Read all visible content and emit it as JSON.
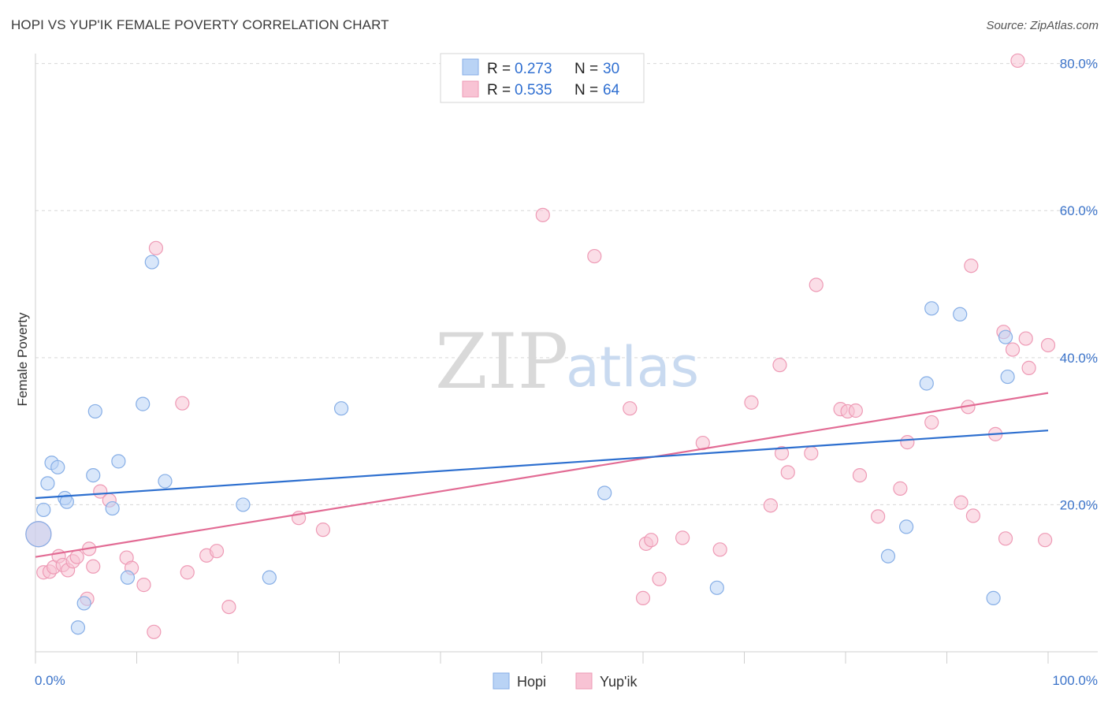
{
  "header": {
    "title": "HOPI VS YUP'IK FEMALE POVERTY CORRELATION CHART",
    "source": "Source: ZipAtlas.com"
  },
  "watermark": {
    "zip": "ZIP",
    "atlas": "atlas"
  },
  "colors": {
    "hopi_fill": "#b9d3f5",
    "hopi_stroke": "#86aee6",
    "hopi_line": "#2d6fcf",
    "yupik_fill": "#f8c3d4",
    "yupik_stroke": "#ee9ab5",
    "yupik_line": "#e26b94",
    "tick_text": "#3b73c9",
    "grid": "#d8d8d8"
  },
  "legend": {
    "rows": [
      {
        "r_label": "R = ",
        "r_value": "0.273",
        "n_label": "N = ",
        "n_value": "30"
      },
      {
        "r_label": "R = ",
        "r_value": "0.535",
        "n_label": "N = ",
        "n_value": "64"
      }
    ]
  },
  "chart_data": {
    "type": "scatter",
    "title": "HOPI VS YUP'IK FEMALE POVERTY CORRELATION CHART",
    "xlabel": "",
    "ylabel": "Female Poverty",
    "xlim": [
      0,
      100
    ],
    "ylim": [
      0,
      82
    ],
    "x_tick_labels": [
      "0.0%",
      "100.0%"
    ],
    "y_ticks": [
      20,
      40,
      60,
      80
    ],
    "y_tick_labels": [
      "20.0%",
      "40.0%",
      "60.0%",
      "80.0%"
    ],
    "grid": true,
    "series": [
      {
        "name": "Hopi",
        "R": 0.273,
        "N": 30,
        "trend": {
          "x": [
            0,
            100
          ],
          "y": [
            20.9,
            30.1
          ]
        },
        "points": [
          {
            "x": 0.3,
            "y": 16.0,
            "big": true
          },
          {
            "x": 0.8,
            "y": 19.3
          },
          {
            "x": 1.2,
            "y": 22.9
          },
          {
            "x": 1.6,
            "y": 25.7
          },
          {
            "x": 2.2,
            "y": 25.1
          },
          {
            "x": 2.9,
            "y": 20.9
          },
          {
            "x": 3.1,
            "y": 20.4
          },
          {
            "x": 4.2,
            "y": 3.3
          },
          {
            "x": 4.8,
            "y": 6.6
          },
          {
            "x": 5.7,
            "y": 24.0
          },
          {
            "x": 5.9,
            "y": 32.7
          },
          {
            "x": 7.6,
            "y": 19.5
          },
          {
            "x": 8.2,
            "y": 25.9
          },
          {
            "x": 9.1,
            "y": 10.1
          },
          {
            "x": 10.6,
            "y": 33.7
          },
          {
            "x": 11.5,
            "y": 53.0
          },
          {
            "x": 12.8,
            "y": 23.2
          },
          {
            "x": 20.5,
            "y": 20.0
          },
          {
            "x": 23.1,
            "y": 10.1
          },
          {
            "x": 30.2,
            "y": 33.1
          },
          {
            "x": 56.2,
            "y": 21.6
          },
          {
            "x": 67.3,
            "y": 8.7
          },
          {
            "x": 84.2,
            "y": 13.0
          },
          {
            "x": 86.0,
            "y": 17.0
          },
          {
            "x": 88.0,
            "y": 36.5
          },
          {
            "x": 88.5,
            "y": 46.7
          },
          {
            "x": 91.3,
            "y": 45.9
          },
          {
            "x": 94.6,
            "y": 7.3
          },
          {
            "x": 95.8,
            "y": 42.8
          },
          {
            "x": 96.0,
            "y": 37.4
          }
        ]
      },
      {
        "name": "Yup'ik",
        "R": 0.535,
        "N": 64,
        "trend": {
          "x": [
            0,
            100
          ],
          "y": [
            12.9,
            35.2
          ]
        },
        "points": [
          {
            "x": 0.3,
            "y": 16.0,
            "big": true
          },
          {
            "x": 0.8,
            "y": 10.8
          },
          {
            "x": 1.4,
            "y": 10.9
          },
          {
            "x": 1.8,
            "y": 11.5
          },
          {
            "x": 2.3,
            "y": 13.0
          },
          {
            "x": 2.7,
            "y": 11.8
          },
          {
            "x": 3.2,
            "y": 11.1
          },
          {
            "x": 3.7,
            "y": 12.3
          },
          {
            "x": 4.1,
            "y": 12.9
          },
          {
            "x": 5.1,
            "y": 7.2
          },
          {
            "x": 5.3,
            "y": 14.0
          },
          {
            "x": 5.7,
            "y": 11.6
          },
          {
            "x": 6.4,
            "y": 21.8
          },
          {
            "x": 7.3,
            "y": 20.6
          },
          {
            "x": 9.0,
            "y": 12.8
          },
          {
            "x": 9.5,
            "y": 11.4
          },
          {
            "x": 10.7,
            "y": 9.1
          },
          {
            "x": 11.7,
            "y": 2.7
          },
          {
            "x": 11.9,
            "y": 54.9
          },
          {
            "x": 14.5,
            "y": 33.8
          },
          {
            "x": 15.0,
            "y": 10.8
          },
          {
            "x": 16.9,
            "y": 13.1
          },
          {
            "x": 17.9,
            "y": 13.7
          },
          {
            "x": 19.1,
            "y": 6.1
          },
          {
            "x": 26.0,
            "y": 18.2
          },
          {
            "x": 28.4,
            "y": 16.6
          },
          {
            "x": 50.1,
            "y": 59.4
          },
          {
            "x": 55.2,
            "y": 53.8
          },
          {
            "x": 58.7,
            "y": 33.1
          },
          {
            "x": 60.0,
            "y": 7.3
          },
          {
            "x": 60.3,
            "y": 14.7
          },
          {
            "x": 60.8,
            "y": 15.2
          },
          {
            "x": 61.6,
            "y": 9.9
          },
          {
            "x": 63.9,
            "y": 15.5
          },
          {
            "x": 65.9,
            "y": 28.4
          },
          {
            "x": 67.6,
            "y": 13.9
          },
          {
            "x": 70.7,
            "y": 33.9
          },
          {
            "x": 72.6,
            "y": 19.9
          },
          {
            "x": 73.5,
            "y": 39.0
          },
          {
            "x": 73.7,
            "y": 27.0
          },
          {
            "x": 74.3,
            "y": 24.4
          },
          {
            "x": 76.6,
            "y": 27.0
          },
          {
            "x": 77.1,
            "y": 49.9
          },
          {
            "x": 79.5,
            "y": 33.0
          },
          {
            "x": 80.2,
            "y": 32.7
          },
          {
            "x": 81.0,
            "y": 32.8
          },
          {
            "x": 81.4,
            "y": 24.0
          },
          {
            "x": 83.2,
            "y": 18.4
          },
          {
            "x": 85.4,
            "y": 22.2
          },
          {
            "x": 86.1,
            "y": 28.5
          },
          {
            "x": 88.5,
            "y": 31.2
          },
          {
            "x": 91.4,
            "y": 20.3
          },
          {
            "x": 92.1,
            "y": 33.3
          },
          {
            "x": 92.4,
            "y": 52.5
          },
          {
            "x": 92.6,
            "y": 18.5
          },
          {
            "x": 94.8,
            "y": 29.6
          },
          {
            "x": 95.6,
            "y": 43.5
          },
          {
            "x": 95.8,
            "y": 15.4
          },
          {
            "x": 96.5,
            "y": 41.1
          },
          {
            "x": 97.0,
            "y": 80.4
          },
          {
            "x": 97.8,
            "y": 42.6
          },
          {
            "x": 98.1,
            "y": 38.6
          },
          {
            "x": 99.7,
            "y": 15.2
          },
          {
            "x": 100.0,
            "y": 41.7
          }
        ]
      }
    ]
  }
}
